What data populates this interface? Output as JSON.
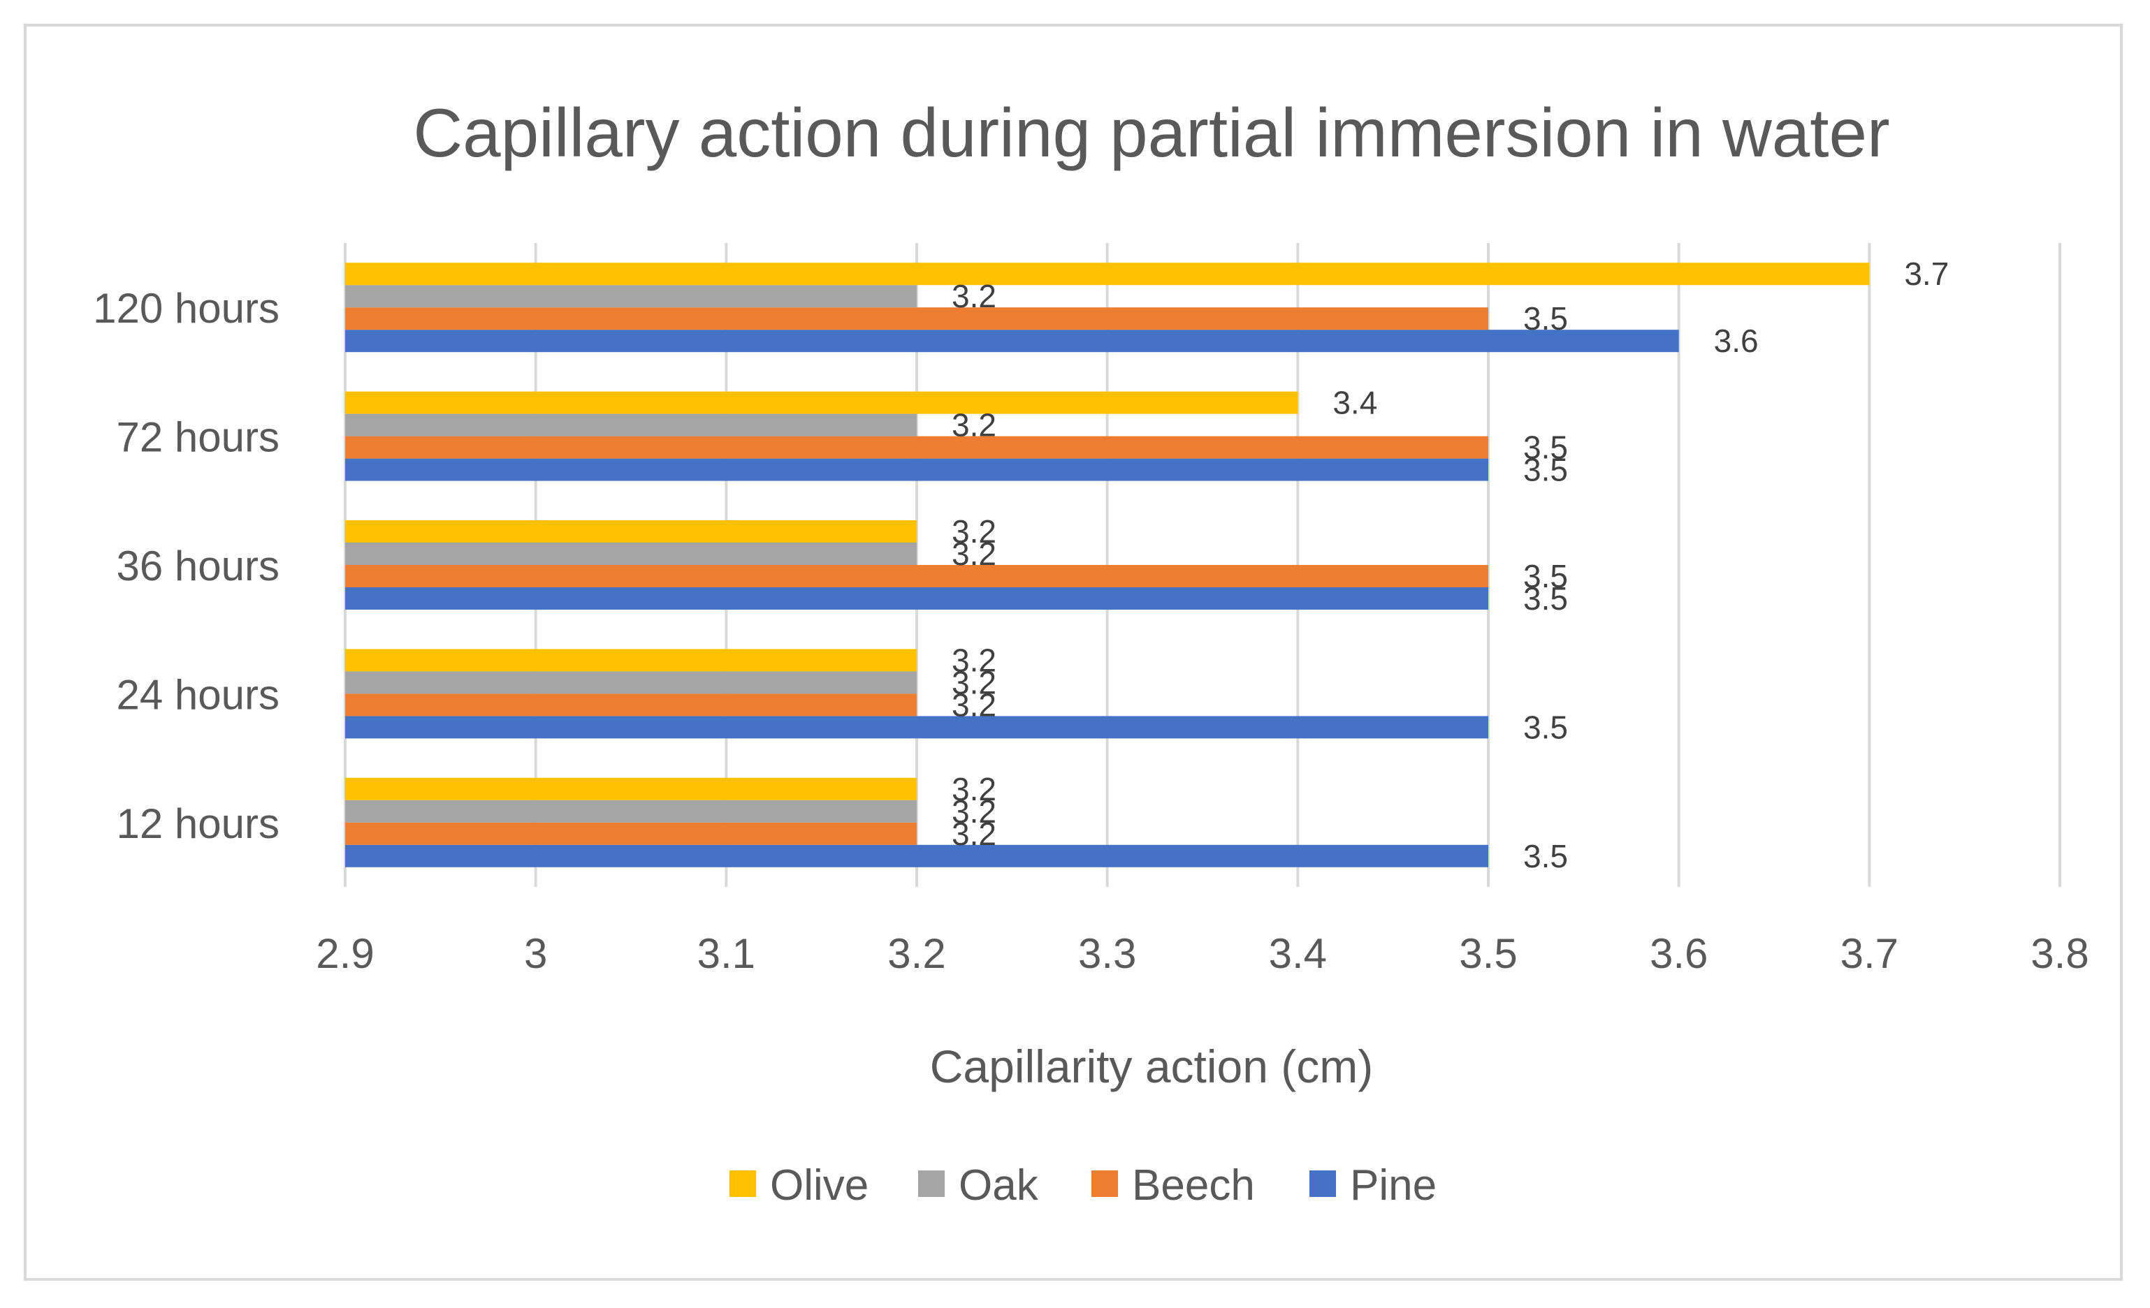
{
  "chart_data": {
    "type": "bar",
    "orientation": "horizontal",
    "title": "Capillary action during partial immersion in water",
    "xlabel": "Capillarity action (cm)",
    "ylabel": "",
    "xlim": [
      2.9,
      3.8
    ],
    "xticks": [
      "2.9",
      "3",
      "3.1",
      "3.2",
      "3.3",
      "3.4",
      "3.5",
      "3.6",
      "3.7",
      "3.8"
    ],
    "categories": [
      "12 hours",
      "24 hours",
      "36 hours",
      "72 hours",
      "120 hours"
    ],
    "series": [
      {
        "name": "Pine",
        "color": "#4472c4",
        "values": [
          3.5,
          3.5,
          3.5,
          3.5,
          3.6
        ]
      },
      {
        "name": "Beech",
        "color": "#ed7d31",
        "values": [
          3.2,
          3.2,
          3.5,
          3.5,
          3.5
        ]
      },
      {
        "name": "Oak",
        "color": "#a5a5a5",
        "values": [
          3.2,
          3.2,
          3.2,
          3.2,
          3.2
        ]
      },
      {
        "name": "Olive",
        "color": "#ffc000",
        "values": [
          3.2,
          3.2,
          3.2,
          3.4,
          3.7
        ]
      }
    ],
    "legend_order": [
      "Olive",
      "Oak",
      "Beech",
      "Pine"
    ],
    "legend_position": "bottom",
    "grid": true,
    "gridline_color": "#d9d9d9"
  }
}
